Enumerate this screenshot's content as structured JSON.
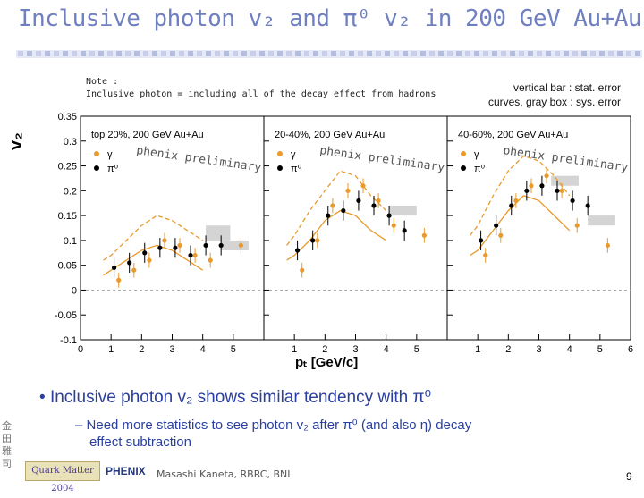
{
  "slide": {
    "title": "Inclusive photon v₂ and π⁰ v₂ in 200 GeV Au+Au",
    "note_line1": "Note :",
    "note_line2": "Inclusive photon = including all of the decay effect from hadrons",
    "errors_line1": "vertical bar : stat. error",
    "errors_line2": "curves, gray box : sys. error",
    "y_axis_title": "v₂",
    "x_axis_title": "pₜ [GeV/c]",
    "bullet": "Inclusive photon v₂ shows similar tendency with π⁰",
    "sub_bullet_line1": "Need more statistics to see photon v₂ after π⁰ (and also η) decay",
    "sub_bullet_line2": "effect subtraction",
    "footer_author": "Masashi Kaneta, RBRC, BNL",
    "page_number": "9",
    "conference_logo": "Quark Matter 2004",
    "experiment_logo": "PHENIX",
    "seal_text": "金田雅司"
  },
  "chart_data": {
    "type": "scatter",
    "ylim": [
      -0.1,
      0.35
    ],
    "xlim": [
      0,
      6
    ],
    "yticks": [
      "-0.1",
      "-0.05",
      "0",
      "0.05",
      "0.1",
      "0.15",
      "0.2",
      "0.25",
      "0.3",
      "0.35"
    ],
    "xticks": [
      "0",
      "1",
      "2",
      "3",
      "4",
      "5",
      "6"
    ],
    "legend": {
      "gamma": "γ",
      "pi0": "π⁰"
    },
    "watermark": "phenix preliminary",
    "panels": [
      {
        "label": "top 20%, 200 GeV Au+Au",
        "gamma": [
          [
            1.25,
            0.02
          ],
          [
            1.75,
            0.04
          ],
          [
            2.25,
            0.06
          ],
          [
            2.75,
            0.1
          ],
          [
            3.25,
            0.09
          ],
          [
            3.75,
            0.07
          ],
          [
            4.25,
            0.06
          ],
          [
            5.25,
            0.09
          ]
        ],
        "pi0": [
          [
            1.1,
            0.045
          ],
          [
            1.6,
            0.055
          ],
          [
            2.1,
            0.075
          ],
          [
            2.6,
            0.085
          ],
          [
            3.1,
            0.085
          ],
          [
            3.6,
            0.07
          ],
          [
            4.1,
            0.09
          ],
          [
            4.6,
            0.09
          ]
        ],
        "gamma_sys": [
          [
            0.75,
            0.06
          ],
          [
            1.0,
            0.07
          ],
          [
            1.5,
            0.1
          ],
          [
            2.0,
            0.13
          ],
          [
            2.5,
            0.15
          ],
          [
            3.0,
            0.14
          ],
          [
            3.5,
            0.12
          ],
          [
            4.0,
            0.1
          ]
        ],
        "gamma_sys_low": [
          [
            0.75,
            0.03
          ],
          [
            1.0,
            0.04
          ],
          [
            1.5,
            0.06
          ],
          [
            2.0,
            0.08
          ],
          [
            2.5,
            0.09
          ],
          [
            3.0,
            0.08
          ],
          [
            3.5,
            0.06
          ],
          [
            4.0,
            0.04
          ]
        ],
        "boxes": [
          [
            4.1,
            4.9,
            0.1,
            0.13
          ],
          [
            4.6,
            5.5,
            0.08,
            0.1
          ]
        ]
      },
      {
        "label": "20-40%, 200 GeV Au+Au",
        "gamma": [
          [
            1.25,
            0.04
          ],
          [
            1.75,
            0.1
          ],
          [
            2.25,
            0.17
          ],
          [
            2.75,
            0.2
          ],
          [
            3.25,
            0.21
          ],
          [
            3.75,
            0.18
          ],
          [
            4.25,
            0.13
          ],
          [
            5.25,
            0.11
          ]
        ],
        "pi0": [
          [
            1.1,
            0.08
          ],
          [
            1.6,
            0.1
          ],
          [
            2.1,
            0.15
          ],
          [
            2.6,
            0.16
          ],
          [
            3.1,
            0.18
          ],
          [
            3.6,
            0.17
          ],
          [
            4.1,
            0.15
          ],
          [
            4.6,
            0.12
          ]
        ],
        "gamma_sys": [
          [
            0.75,
            0.09
          ],
          [
            1.0,
            0.11
          ],
          [
            1.5,
            0.16
          ],
          [
            2.0,
            0.2
          ],
          [
            2.5,
            0.24
          ],
          [
            3.0,
            0.23
          ],
          [
            3.5,
            0.19
          ],
          [
            4.0,
            0.16
          ]
        ],
        "gamma_sys_low": [
          [
            0.75,
            0.06
          ],
          [
            1.0,
            0.07
          ],
          [
            1.5,
            0.1
          ],
          [
            2.0,
            0.14
          ],
          [
            2.5,
            0.16
          ],
          [
            3.0,
            0.15
          ],
          [
            3.5,
            0.12
          ],
          [
            4.0,
            0.1
          ]
        ],
        "boxes": [
          [
            4.1,
            5.0,
            0.15,
            0.17
          ]
        ]
      },
      {
        "label": "40-60%, 200 GeV Au+Au",
        "gamma": [
          [
            1.25,
            0.07
          ],
          [
            1.75,
            0.11
          ],
          [
            2.25,
            0.18
          ],
          [
            2.75,
            0.21
          ],
          [
            3.25,
            0.23
          ],
          [
            3.75,
            0.2
          ],
          [
            4.25,
            0.13
          ],
          [
            5.25,
            0.09
          ]
        ],
        "pi0": [
          [
            1.1,
            0.1
          ],
          [
            1.6,
            0.13
          ],
          [
            2.1,
            0.17
          ],
          [
            2.6,
            0.2
          ],
          [
            3.1,
            0.21
          ],
          [
            3.6,
            0.2
          ],
          [
            4.1,
            0.18
          ],
          [
            4.6,
            0.17
          ]
        ],
        "gamma_sys": [
          [
            0.75,
            0.11
          ],
          [
            1.0,
            0.13
          ],
          [
            1.5,
            0.19
          ],
          [
            2.0,
            0.24
          ],
          [
            2.5,
            0.27
          ],
          [
            3.0,
            0.26
          ],
          [
            3.5,
            0.23
          ],
          [
            4.0,
            0.19
          ]
        ],
        "gamma_sys_low": [
          [
            0.75,
            0.07
          ],
          [
            1.0,
            0.08
          ],
          [
            1.5,
            0.12
          ],
          [
            2.0,
            0.16
          ],
          [
            2.5,
            0.19
          ],
          [
            3.0,
            0.18
          ],
          [
            3.5,
            0.15
          ],
          [
            4.0,
            0.12
          ]
        ],
        "boxes": [
          [
            3.4,
            4.3,
            0.21,
            0.23
          ],
          [
            4.6,
            5.5,
            0.13,
            0.15
          ]
        ]
      }
    ]
  }
}
